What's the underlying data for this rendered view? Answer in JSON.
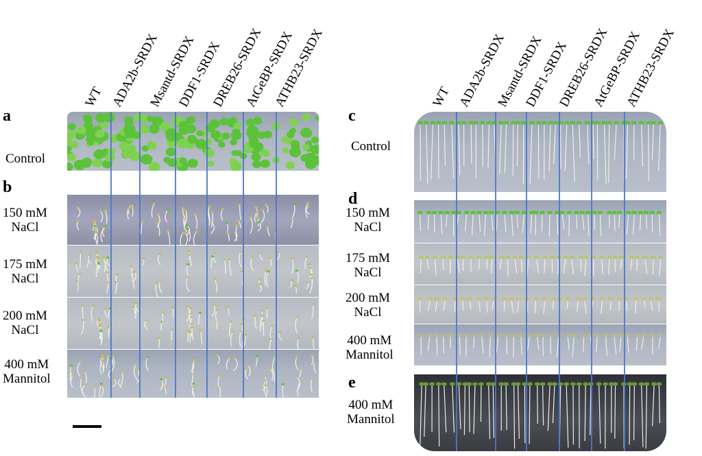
{
  "columns": [
    "WT",
    "ADA2b-SRDX",
    "Msantd-SRDX",
    "DDF1-SRDX",
    "DREB26-SRDX",
    "AtGeBP-SRDX",
    "ATHB23-SRDX"
  ],
  "left": {
    "panels": [
      {
        "letter": "a",
        "rows": [
          "Control"
        ]
      },
      {
        "letter": "b",
        "rows": [
          "150 mM\nNaCl",
          "175 mM\nNaCl",
          "200 mM\nNaCl",
          "400 mM\nMannitol"
        ]
      }
    ]
  },
  "right": {
    "panels": [
      {
        "letter": "c",
        "rows": [
          "Control"
        ]
      },
      {
        "letter": "d",
        "rows": [
          "150 mM\nNaCl",
          "175 mM\nNaCl",
          "200 mM\nNaCl",
          "400 mM\nMannitol"
        ]
      },
      {
        "letter": "e",
        "rows": [
          "400 mM\nMannitol"
        ]
      }
    ]
  },
  "colors": {
    "divider": "#4a78c8",
    "cotyledon": "#5cc23a",
    "root": "#eef0e8"
  }
}
